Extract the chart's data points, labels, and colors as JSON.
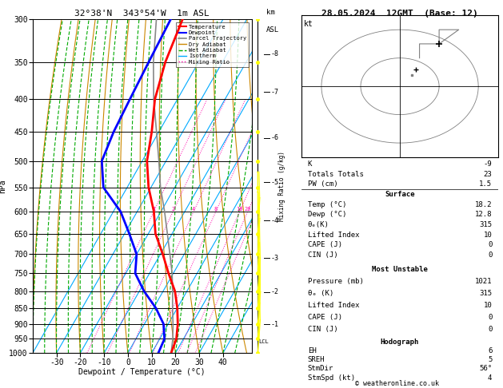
{
  "title_left": "32°38'N  343°54'W  1m ASL",
  "title_right": "28.05.2024  12GMT  (Base: 12)",
  "xlabel": "Dewpoint / Temperature (°C)",
  "ylabel_left": "hPa",
  "pressure_levels": [
    300,
    350,
    400,
    450,
    500,
    550,
    600,
    650,
    700,
    750,
    800,
    850,
    900,
    950,
    1000
  ],
  "temp_range": [
    -40,
    40
  ],
  "pressure_min": 300,
  "pressure_max": 1000,
  "isotherm_color": "#00aaff",
  "dry_adiabat_color": "#cc8800",
  "wet_adiabat_color": "#00aa00",
  "mixing_ratio_color": "#ff00aa",
  "temp_profile_T": [
    18.2,
    17.0,
    14.0,
    10.0,
    5.0,
    -2.0,
    -9.0,
    -17.0,
    -23.0,
    -31.0,
    -38.0,
    -43.0,
    -49.5,
    -54.0,
    -57.0
  ],
  "temp_profile_P": [
    1000,
    950,
    900,
    850,
    800,
    750,
    700,
    650,
    600,
    550,
    500,
    450,
    400,
    350,
    300
  ],
  "dewp_profile_T": [
    12.8,
    12.0,
    8.0,
    1.0,
    -8.0,
    -16.0,
    -20.0,
    -28.0,
    -37.0,
    -50.0,
    -57.0,
    -59.0,
    -60.0,
    -61.0,
    -62.0
  ],
  "dewp_profile_P": [
    1000,
    950,
    900,
    850,
    800,
    750,
    700,
    650,
    600,
    550,
    500,
    450,
    400,
    350,
    300
  ],
  "parcel_T": [
    18.2,
    15.5,
    12.0,
    8.0,
    4.0,
    -0.5,
    -6.0,
    -12.0,
    -18.5,
    -26.0,
    -33.0,
    -41.0,
    -50.0,
    -59.0,
    -68.0
  ],
  "parcel_P": [
    1000,
    950,
    900,
    850,
    800,
    750,
    700,
    650,
    600,
    550,
    500,
    450,
    400,
    350,
    300
  ],
  "lcl_pressure": 960,
  "mixing_ratios": [
    1,
    2,
    4,
    8,
    16,
    20,
    25
  ],
  "km_ticks": [
    1,
    2,
    3,
    4,
    5,
    6,
    7,
    8
  ],
  "km_pressures": [
    902,
    802,
    710,
    620,
    540,
    460,
    390,
    340
  ],
  "stats": {
    "K": -9,
    "Totals_Totals": 23,
    "PW_cm": 1.5,
    "Surface_Temp": 18.2,
    "Surface_Dewp": 12.8,
    "Surface_Theta_e": 315,
    "Surface_LI": 10,
    "Surface_CAPE": 0,
    "Surface_CIN": 0,
    "MU_Pressure": 1021,
    "MU_Theta_e": 315,
    "MU_LI": 10,
    "MU_CAPE": 0,
    "MU_CIN": 0,
    "EH": 6,
    "SREH": 5,
    "StmDir": 56,
    "StmSpd": 4
  },
  "wind_u": [
    2,
    2,
    3,
    2,
    2,
    1,
    1,
    1,
    0,
    0,
    0,
    0,
    0,
    0,
    0
  ],
  "wind_v": [
    3,
    4,
    4,
    3,
    3,
    3,
    2,
    2,
    1,
    0,
    0,
    0,
    0,
    0,
    0
  ],
  "wind_p": [
    1000,
    950,
    900,
    850,
    800,
    750,
    700,
    650,
    600,
    550,
    500,
    450,
    400,
    350,
    300
  ],
  "bg_color": "#ffffff",
  "text_color": "#000000"
}
